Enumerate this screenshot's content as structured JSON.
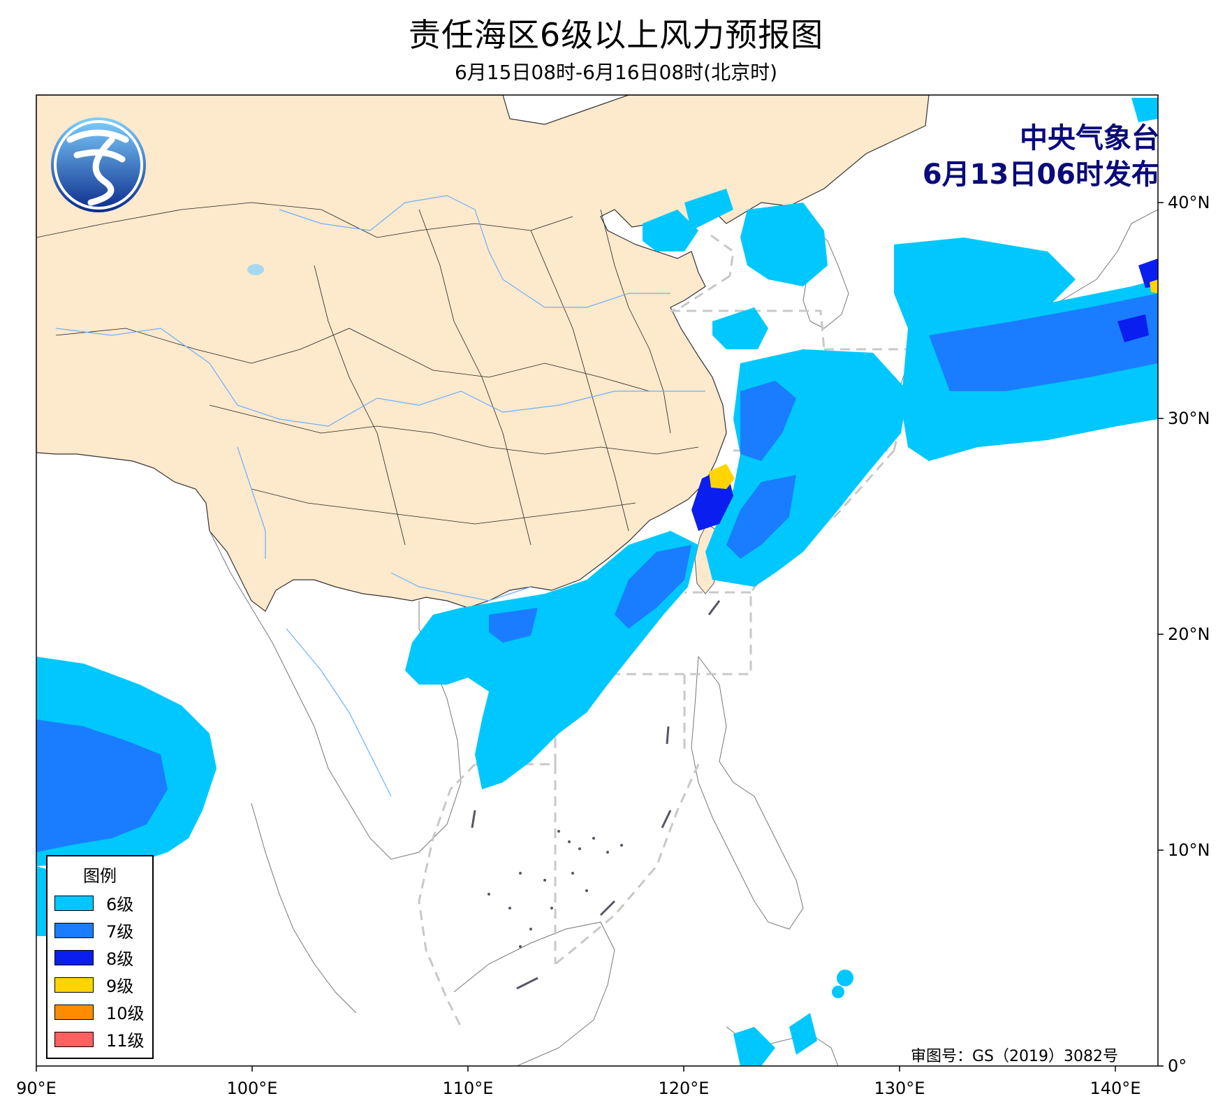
{
  "title": "责任海区6级以上风力预报图",
  "subtitle": "6月15日08时-6月16日08时(北京时)",
  "issuer": {
    "line1": "中央气象台",
    "line2": "6月13日06时发布"
  },
  "approval": "审图号：GS（2019）3082号",
  "legend": {
    "title": "图例",
    "items": [
      {
        "label": "6级",
        "color": "#00c8ff"
      },
      {
        "label": "7级",
        "color": "#1a7dff"
      },
      {
        "label": "8级",
        "color": "#0a1ef0"
      },
      {
        "label": "9级",
        "color": "#ffd400"
      },
      {
        "label": "10级",
        "color": "#ff8c00"
      },
      {
        "label": "11级",
        "color": "#ff6060"
      }
    ]
  },
  "axes": {
    "x_ticks": [
      "90°E",
      "100°E",
      "110°E",
      "120°E",
      "130°E",
      "140°E"
    ],
    "y_ticks": [
      "0°",
      "10°N",
      "20°N",
      "30°N",
      "40°N"
    ]
  },
  "colors": {
    "land_china": "#fde9cc",
    "sea": "#ffffff",
    "boundary": "#cccccc",
    "river": "#6ab0ff",
    "logo": "#1c4fa0"
  }
}
